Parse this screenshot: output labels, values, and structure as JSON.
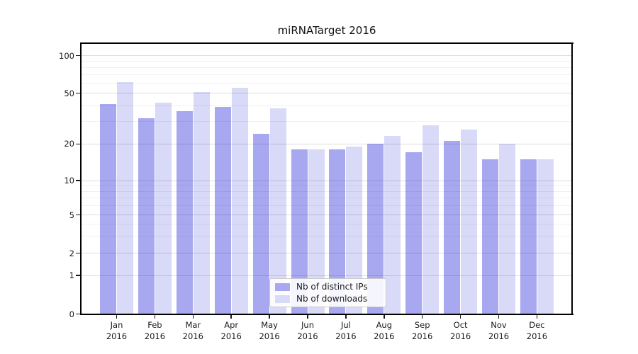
{
  "title": "miRNATarget 2016",
  "chart_data": {
    "type": "bar",
    "title": "miRNATarget 2016",
    "x_categories": [
      "Jan 2016",
      "Feb 2016",
      "Mar 2016",
      "Apr 2016",
      "May 2016",
      "Jun 2016",
      "Jul 2016",
      "Aug 2016",
      "Sep 2016",
      "Oct 2016",
      "Nov 2016",
      "Dec 2016"
    ],
    "months": [
      "Jan",
      "Feb",
      "Mar",
      "Apr",
      "May",
      "Jun",
      "Jul",
      "Aug",
      "Sep",
      "Oct",
      "Nov",
      "Dec"
    ],
    "year": "2016",
    "series": [
      {
        "name": "Nb of distinct IPs",
        "color": "#a8a8f0",
        "values": [
          41,
          32,
          36,
          39,
          24,
          18,
          18,
          20,
          17,
          21,
          15,
          15
        ]
      },
      {
        "name": "Nb of downloads",
        "color": "#d9d9f8",
        "values": [
          61,
          42,
          51,
          55,
          38,
          18,
          19,
          23,
          28,
          26,
          20,
          15
        ]
      }
    ],
    "y_axis": {
      "scale": "symlog (0 baseline, logarithmic above 1)",
      "major_ticks": [
        0,
        1,
        2,
        5,
        10,
        20,
        50,
        100
      ],
      "minor_ticks": [
        3,
        4,
        6,
        7,
        8,
        9,
        30,
        40,
        60,
        70,
        80,
        90
      ],
      "range_top": 130
    },
    "grid": {
      "horizontal_major": true,
      "horizontal_minor": true,
      "vertical": false
    },
    "legend": {
      "position": "inside-bottom-center",
      "entries": [
        "Nb of distinct IPs",
        "Nb of downloads"
      ]
    }
  },
  "colors": {
    "bar_dark": "#a8a8f0",
    "bar_light": "#d9d9f8",
    "grid_major": "#dddddd",
    "grid_minor": "#f1f1f1",
    "text": "#1a1a1a",
    "spine": "#000000",
    "legend_border": "#cbcbcb"
  }
}
